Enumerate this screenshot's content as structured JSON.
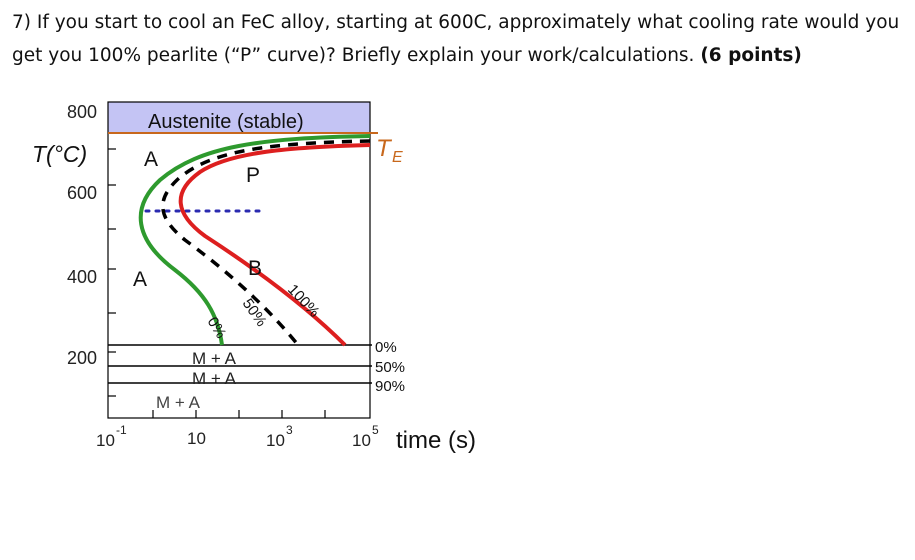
{
  "question": {
    "text": "7) If you start to cool an FeC alloy, starting at 600C, approximately what cooling rate would you get you 100% pearlite (“P” curve)? Briefly explain your work/calculations.",
    "points": "(6 points)"
  },
  "diagram": {
    "y_axis_label": "T(°C)",
    "y_ticks": [
      "800",
      "600",
      "400",
      "200"
    ],
    "x_ticks": [
      "10",
      "-1",
      "10",
      "10",
      "3",
      "10",
      "5"
    ],
    "x_axis_label": "time (s)",
    "austenite_label": "Austenite (stable)",
    "te_label": "T",
    "te_subscript": "E",
    "region_labels": {
      "a_top": "A",
      "a_mid": "A",
      "p": "P",
      "b": "B"
    },
    "curve_labels": {
      "pct0": "0%",
      "pct50": "50%",
      "pct100": "100%"
    },
    "martensite_labels": {
      "m1": "M + A",
      "m2": "M + A",
      "m3": "M + A"
    },
    "martensite_pcts": {
      "p0": "0%",
      "p50": "50%",
      "p90": "90%"
    },
    "colors": {
      "start_curve": "#2e9a2e",
      "finish_curve": "#dd1f1f",
      "midpoint_curve": "#000000",
      "isotherm": "#2a2ab0",
      "eutectoid_line": "#c8681c",
      "austenite_fill": "#c4c4f4"
    }
  }
}
